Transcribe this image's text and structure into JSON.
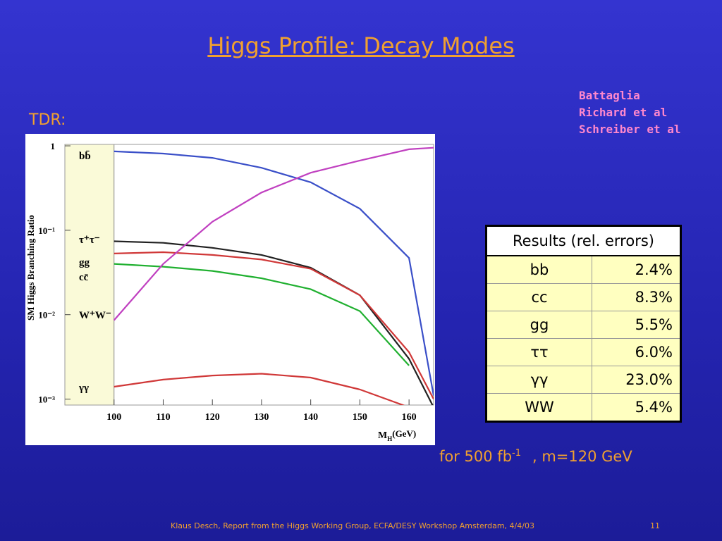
{
  "slide": {
    "title": "Higgs Profile: Decay Modes",
    "tdr_label": "TDR:",
    "authors": [
      "Battaglia",
      "Richard et al",
      "Schreiber et al"
    ]
  },
  "chart_data": {
    "type": "line",
    "ylabel": "SM Higgs Branching Ratio",
    "xlabel": "M",
    "xlabel_sub": "H",
    "xlabel_unit": "(GeV)",
    "x": [
      100,
      110,
      120,
      130,
      140,
      150,
      160,
      165
    ],
    "xlim": [
      90,
      165
    ],
    "ylim": [
      0.00085,
      1.04
    ],
    "log_y": true,
    "grid": false,
    "xticks": [
      100,
      110,
      120,
      130,
      140,
      150,
      160
    ],
    "yticks": [
      1,
      {
        "value": 0.1,
        "label": "10⁻¹"
      },
      {
        "value": 0.01,
        "label": "10⁻²"
      },
      {
        "value": 0.001,
        "label": "10⁻³"
      }
    ],
    "series": [
      {
        "name": "bb̄",
        "color": "#3a4fc8",
        "values": [
          0.86,
          0.81,
          0.72,
          0.55,
          0.37,
          0.18,
          0.047,
          0.0011
        ]
      },
      {
        "name": "τ⁺τ⁻",
        "color": "#222222",
        "values": [
          0.074,
          0.071,
          0.062,
          0.051,
          0.036,
          0.017,
          0.003,
          0.0008
        ]
      },
      {
        "name": "gg",
        "color": "#d03838",
        "values": [
          0.053,
          0.055,
          0.051,
          0.045,
          0.035,
          0.017,
          0.0036,
          0.001
        ]
      },
      {
        "name": "cc̄",
        "color": "#20b030",
        "values": [
          0.04,
          0.037,
          0.033,
          0.027,
          0.02,
          0.011,
          0.0025,
          null
        ]
      },
      {
        "name": "W⁺W⁻",
        "color": "#c040c0",
        "values": [
          0.0086,
          0.04,
          0.126,
          0.28,
          0.48,
          0.67,
          0.91,
          0.95
        ]
      },
      {
        "name": "γγ",
        "color": "#d03838",
        "values": [
          0.0014,
          0.0017,
          0.0019,
          0.002,
          0.0018,
          0.0013,
          0.0008,
          null
        ]
      }
    ]
  },
  "table": {
    "header": "Results (rel. errors)",
    "rows": [
      [
        "bb",
        "2.4%"
      ],
      [
        "cc",
        "8.3%"
      ],
      [
        "gg",
        "5.5%"
      ],
      [
        "ττ",
        "6.0%"
      ],
      [
        "γγ",
        "23.0%"
      ],
      [
        "WW",
        "5.4%"
      ]
    ]
  },
  "note": {
    "text": "for 500 fb",
    "superscript": "-1",
    "suffix": ", m=120 GeV"
  },
  "footer": {
    "text": "Klaus Desch, Report from the Higgs Working Group, ECFA/DESY Workshop Amsterdam, 4/4/03",
    "page": "11"
  }
}
